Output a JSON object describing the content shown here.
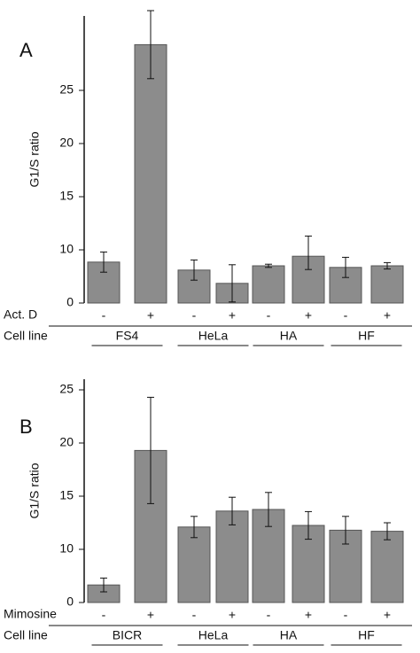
{
  "chart_data": [
    {
      "type": "bar",
      "panel": "A",
      "ylabel": "G1/S  ratio",
      "treatment_label": "Act. D",
      "cell_line_label": "Cell  line",
      "categories": [
        "-",
        "+",
        "-",
        "+",
        "-",
        "+",
        "-",
        "+"
      ],
      "groups": [
        "FS4",
        "HeLa",
        "HA",
        "HF"
      ],
      "values": [
        7.7,
        29.3,
        6.2,
        3.7,
        7,
        8.8,
        6.7,
        7
      ],
      "errors": [
        1.9,
        3.2,
        1.9,
        3.5,
        0.3,
        2.5,
        1.9,
        0.6
      ],
      "color": "#8c8c8c",
      "ylim": [
        0,
        32
      ],
      "yticks": [
        0,
        10,
        15,
        20,
        25
      ]
    },
    {
      "type": "bar",
      "panel": "B",
      "ylabel": "G1/S  ratio",
      "treatment_label": "Mimosine",
      "cell_line_label": "Cell  line",
      "categories": [
        "-",
        "+",
        "-",
        "+",
        "-",
        "+",
        "-",
        "+"
      ],
      "groups": [
        "BICR",
        "HeLa",
        "HA",
        "HF"
      ],
      "values": [
        3.3,
        19.3,
        12.1,
        13.6,
        13.75,
        12.25,
        11.8,
        11.7
      ],
      "errors": [
        1.3,
        5,
        1,
        1.3,
        1.6,
        1.3,
        1.3,
        0.8
      ],
      "color": "#8c8c8c",
      "ylim": [
        0,
        26
      ],
      "yticks": [
        0,
        10,
        15,
        20,
        25
      ]
    }
  ]
}
